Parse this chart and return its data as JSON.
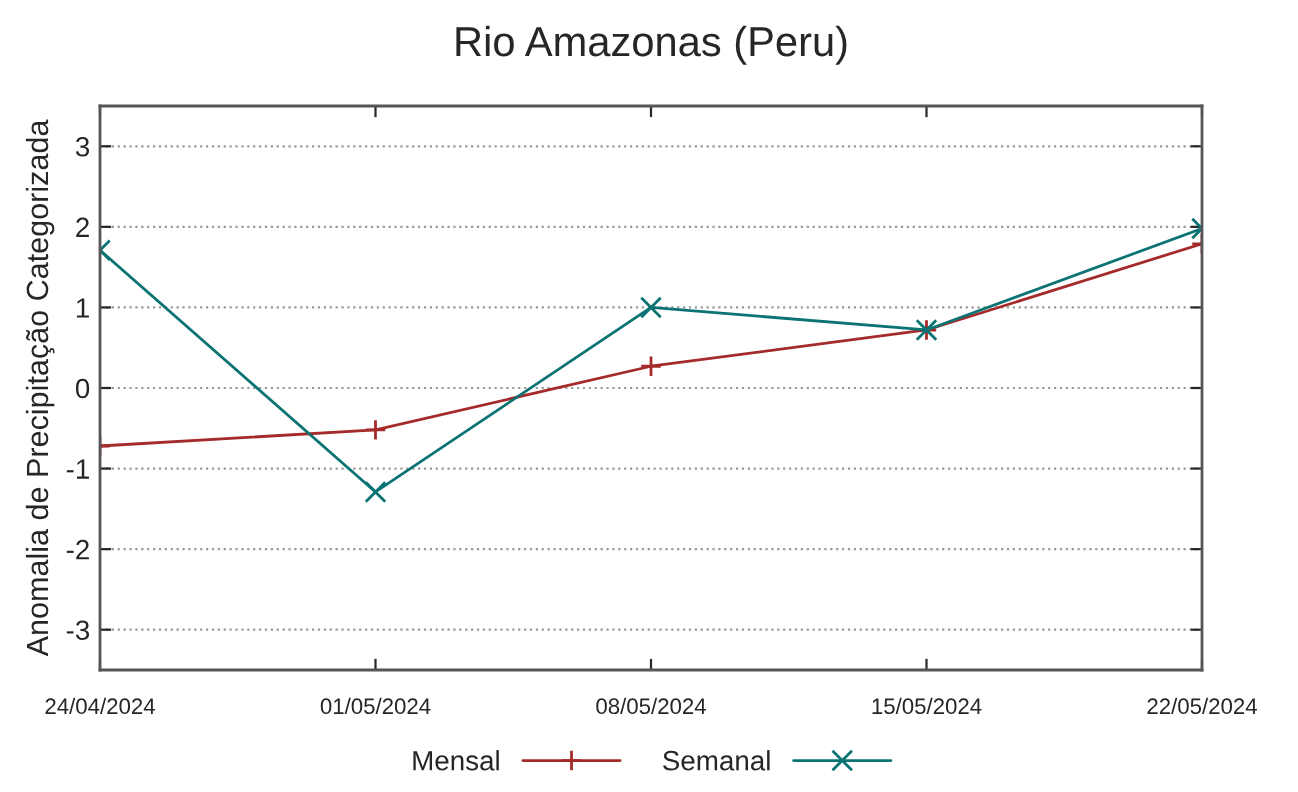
{
  "chart_data": {
    "type": "line",
    "title": "Rio Amazonas (Peru)",
    "ylabel": "Anomalia de Precipitação Categorizada",
    "categories": [
      "24/04/2024",
      "01/05/2024",
      "08/05/2024",
      "15/05/2024",
      "22/05/2024"
    ],
    "series": [
      {
        "name": "Mensal",
        "color": "#a52a2a",
        "marker": "plus",
        "values": [
          -0.72,
          -0.52,
          0.27,
          0.72,
          1.79
        ]
      },
      {
        "name": "Semanal",
        "color": "#0b7373",
        "marker": "cross",
        "values": [
          1.71,
          -1.29,
          1.0,
          0.72,
          1.98
        ]
      }
    ],
    "ylim": [
      -3.5,
      3.5
    ],
    "yticks": [
      -3,
      -2,
      -1,
      0,
      1,
      2,
      3
    ],
    "grid": "y",
    "legend": "bottom"
  }
}
